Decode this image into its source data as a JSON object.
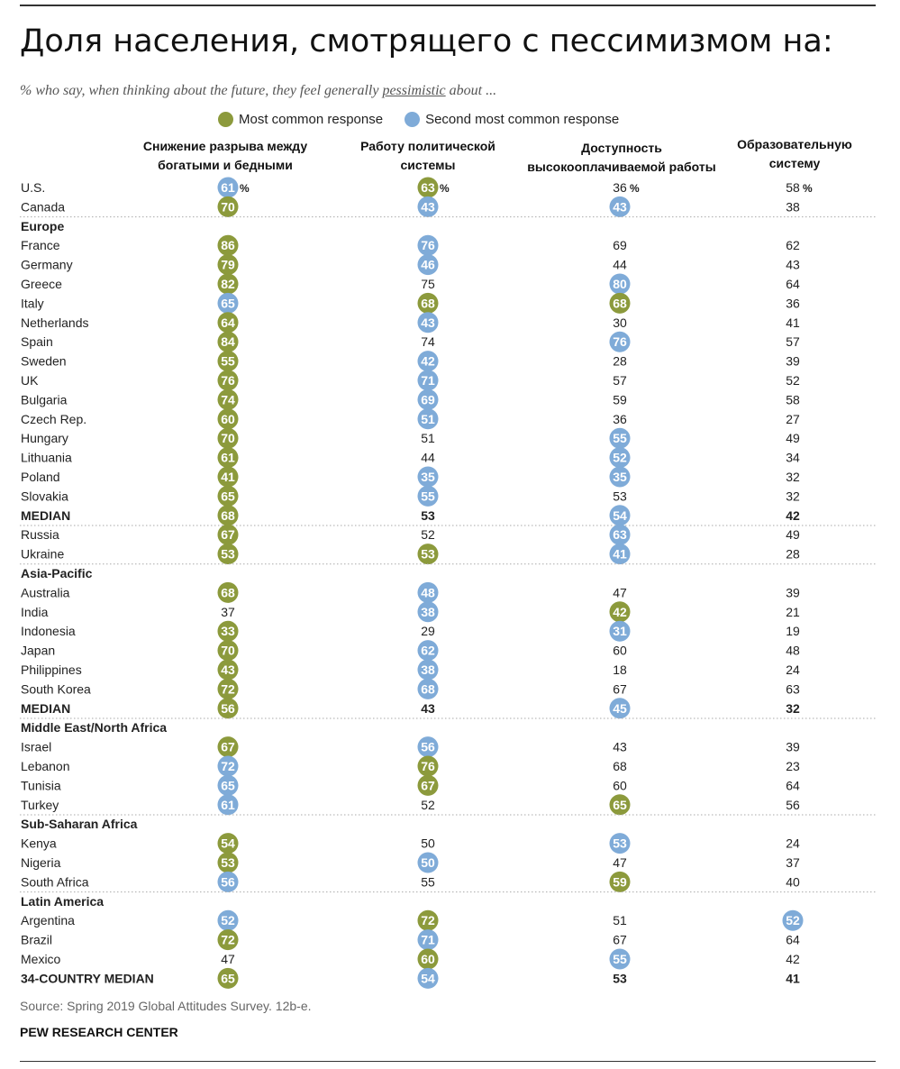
{
  "title": "Доля населения, смотрящего с пессимизмом на:",
  "subtitle_pre": "% who say, when thinking about the future, they feel generally ",
  "subtitle_key": "pessimistic",
  "subtitle_post": " about ...",
  "legend": {
    "most": "Most common response",
    "second": "Second most common response"
  },
  "colors": {
    "most": "#8c9a3c",
    "second": "#7fabd8",
    "text": "#222222",
    "divider": "#aaaaaa"
  },
  "source": "Source: Spring 2019 Global Attitudes Survey. 12b-e.",
  "org": "PEW RESEARCH CENTER",
  "chart_data": {
    "type": "table",
    "title": "Доля населения, смотрящего с пессимизмом на:",
    "unit_suffix": "%",
    "columns": [
      [
        "Снижение разрыва между",
        "богатыми и бедными"
      ],
      [
        "Работу политической",
        "системы"
      ],
      [
        "Доступность",
        "высокооплачиваемой работы"
      ],
      [
        "Образовательную",
        "систему"
      ]
    ],
    "rows": [
      {
        "label": "U.S.",
        "values": [
          61,
          63,
          36,
          58
        ],
        "mark": [
          "second",
          "most",
          null,
          null
        ],
        "pct": true
      },
      {
        "label": "Canada",
        "values": [
          70,
          43,
          43,
          38
        ],
        "mark": [
          "most",
          "second",
          "second",
          null
        ]
      },
      {
        "label": "Europe",
        "header": true
      },
      {
        "label": "France",
        "values": [
          86,
          76,
          69,
          62
        ],
        "mark": [
          "most",
          "second",
          null,
          null
        ]
      },
      {
        "label": "Germany",
        "values": [
          79,
          46,
          44,
          43
        ],
        "mark": [
          "most",
          "second",
          null,
          null
        ]
      },
      {
        "label": "Greece",
        "values": [
          82,
          75,
          80,
          64
        ],
        "mark": [
          "most",
          null,
          "second",
          null
        ]
      },
      {
        "label": "Italy",
        "values": [
          65,
          68,
          68,
          36
        ],
        "mark": [
          "second",
          "most",
          "most",
          null
        ]
      },
      {
        "label": "Netherlands",
        "values": [
          64,
          43,
          30,
          41
        ],
        "mark": [
          "most",
          "second",
          null,
          null
        ]
      },
      {
        "label": "Spain",
        "values": [
          84,
          74,
          76,
          57
        ],
        "mark": [
          "most",
          null,
          "second",
          null
        ]
      },
      {
        "label": "Sweden",
        "values": [
          55,
          42,
          28,
          39
        ],
        "mark": [
          "most",
          "second",
          null,
          null
        ]
      },
      {
        "label": "UK",
        "values": [
          76,
          71,
          57,
          52
        ],
        "mark": [
          "most",
          "second",
          null,
          null
        ]
      },
      {
        "label": "Bulgaria",
        "values": [
          74,
          69,
          59,
          58
        ],
        "mark": [
          "most",
          "second",
          null,
          null
        ]
      },
      {
        "label": "Czech Rep.",
        "values": [
          60,
          51,
          36,
          27
        ],
        "mark": [
          "most",
          "second",
          null,
          null
        ]
      },
      {
        "label": "Hungary",
        "values": [
          70,
          51,
          55,
          49
        ],
        "mark": [
          "most",
          null,
          "second",
          null
        ]
      },
      {
        "label": "Lithuania",
        "values": [
          61,
          44,
          52,
          34
        ],
        "mark": [
          "most",
          null,
          "second",
          null
        ]
      },
      {
        "label": "Poland",
        "values": [
          41,
          35,
          35,
          32
        ],
        "mark": [
          "most",
          "second",
          "second",
          null
        ]
      },
      {
        "label": "Slovakia",
        "values": [
          65,
          55,
          53,
          32
        ],
        "mark": [
          "most",
          "second",
          null,
          null
        ]
      },
      {
        "label": "MEDIAN",
        "values": [
          68,
          53,
          54,
          42
        ],
        "mark": [
          "most",
          null,
          "second",
          null
        ],
        "bold": true
      },
      {
        "label": "Russia",
        "values": [
          67,
          52,
          63,
          49
        ],
        "mark": [
          "most",
          null,
          "second",
          null
        ]
      },
      {
        "label": "Ukraine",
        "values": [
          53,
          53,
          41,
          28
        ],
        "mark": [
          "most",
          "most",
          "second",
          null
        ]
      },
      {
        "label": "Asia-Pacific",
        "header": true
      },
      {
        "label": "Australia",
        "values": [
          68,
          48,
          47,
          39
        ],
        "mark": [
          "most",
          "second",
          null,
          null
        ]
      },
      {
        "label": "India",
        "values": [
          37,
          38,
          42,
          21
        ],
        "mark": [
          null,
          "second",
          "most",
          null
        ]
      },
      {
        "label": "Indonesia",
        "values": [
          33,
          29,
          31,
          19
        ],
        "mark": [
          "most",
          null,
          "second",
          null
        ]
      },
      {
        "label": "Japan",
        "values": [
          70,
          62,
          60,
          48
        ],
        "mark": [
          "most",
          "second",
          null,
          null
        ]
      },
      {
        "label": "Philippines",
        "values": [
          43,
          38,
          18,
          24
        ],
        "mark": [
          "most",
          "second",
          null,
          null
        ]
      },
      {
        "label": "South Korea",
        "values": [
          72,
          68,
          67,
          63
        ],
        "mark": [
          "most",
          "second",
          null,
          null
        ]
      },
      {
        "label": "MEDIAN",
        "values": [
          56,
          43,
          45,
          32
        ],
        "mark": [
          "most",
          null,
          "second",
          null
        ],
        "bold": true
      },
      {
        "label": "Middle East/North Africa",
        "header": true
      },
      {
        "label": "Israel",
        "values": [
          67,
          56,
          43,
          39
        ],
        "mark": [
          "most",
          "second",
          null,
          null
        ]
      },
      {
        "label": "Lebanon",
        "values": [
          72,
          76,
          68,
          23
        ],
        "mark": [
          "second",
          "most",
          null,
          null
        ]
      },
      {
        "label": "Tunisia",
        "values": [
          65,
          67,
          60,
          64
        ],
        "mark": [
          "second",
          "most",
          null,
          null
        ]
      },
      {
        "label": "Turkey",
        "values": [
          61,
          52,
          65,
          56
        ],
        "mark": [
          "second",
          null,
          "most",
          null
        ]
      },
      {
        "label": "Sub-Saharan Africa",
        "header": true
      },
      {
        "label": "Kenya",
        "values": [
          54,
          50,
          53,
          24
        ],
        "mark": [
          "most",
          null,
          "second",
          null
        ]
      },
      {
        "label": "Nigeria",
        "values": [
          53,
          50,
          47,
          37
        ],
        "mark": [
          "most",
          "second",
          null,
          null
        ]
      },
      {
        "label": "South Africa",
        "values": [
          56,
          55,
          59,
          40
        ],
        "mark": [
          "second",
          null,
          "most",
          null
        ]
      },
      {
        "label": "Latin America",
        "header": true
      },
      {
        "label": "Argentina",
        "values": [
          52,
          72,
          51,
          52
        ],
        "mark": [
          "second",
          "most",
          null,
          "second"
        ]
      },
      {
        "label": "Brazil",
        "values": [
          72,
          71,
          67,
          64
        ],
        "mark": [
          "most",
          "second",
          null,
          null
        ]
      },
      {
        "label": "Mexico",
        "values": [
          47,
          60,
          55,
          42
        ],
        "mark": [
          null,
          "most",
          "second",
          null
        ]
      },
      {
        "label": "34-COUNTRY MEDIAN",
        "values": [
          65,
          54,
          53,
          41
        ],
        "mark": [
          "most",
          "second",
          null,
          null
        ],
        "bold": true
      }
    ]
  }
}
